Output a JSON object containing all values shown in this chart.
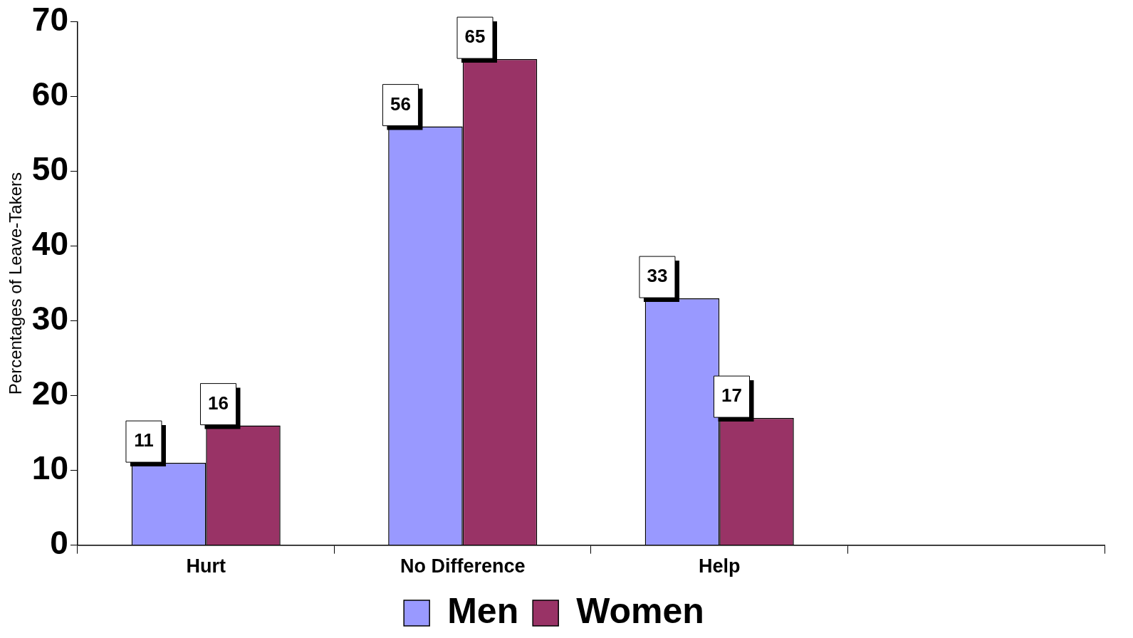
{
  "chart_data": {
    "type": "bar",
    "ylabel": "Percentages of Leave-Takers",
    "categories": [
      "Hurt",
      "No Difference",
      "Help",
      null
    ],
    "series": [
      {
        "name": "Men",
        "color": "#9999ff",
        "values": [
          11,
          56,
          33,
          null
        ]
      },
      {
        "name": "Women",
        "color": "#993366",
        "values": [
          16,
          65,
          17,
          null
        ]
      }
    ],
    "ylim": [
      0,
      70
    ],
    "yticks": [
      0,
      10,
      20,
      30,
      40,
      50,
      60,
      70
    ],
    "grid": false,
    "legend": "bottom",
    "data_labels": true
  }
}
